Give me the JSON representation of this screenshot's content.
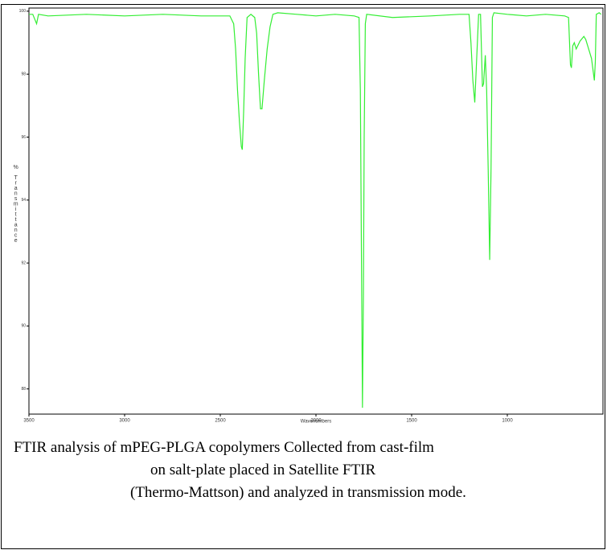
{
  "chart_data": {
    "type": "line",
    "x_label": "Wavenumbers",
    "y_label": "% Transmittance",
    "x": [
      3500,
      3480,
      3460,
      3450,
      3400,
      3200,
      3000,
      2800,
      2600,
      2450,
      2430,
      2420,
      2410,
      2400,
      2390,
      2385,
      2378,
      2370,
      2360,
      2340,
      2320,
      2310,
      2300,
      2290,
      2282,
      2270,
      2255,
      2240,
      2225,
      2200,
      2100,
      2000,
      1900,
      1800,
      1775,
      1768,
      1762,
      1757,
      1752,
      1748,
      1742,
      1735,
      1600,
      1400,
      1250,
      1200,
      1190,
      1180,
      1170,
      1160,
      1150,
      1140,
      1130,
      1124,
      1115,
      1108,
      1100,
      1092,
      1085,
      1078,
      1070,
      1000,
      900,
      800,
      700,
      680,
      670,
      665,
      658,
      650,
      640,
      620,
      600,
      590,
      580,
      560,
      545,
      540,
      535,
      520,
      510
    ],
    "series": [
      {
        "color": "#33ee33",
        "values": [
          99.9,
          99.9,
          99.6,
          99.9,
          99.85,
          99.9,
          99.85,
          99.9,
          99.85,
          99.85,
          99.6,
          98.8,
          97.5,
          96.5,
          95.7,
          95.6,
          96.8,
          98.5,
          99.8,
          99.9,
          99.8,
          99.3,
          98.0,
          96.9,
          96.9,
          97.8,
          98.8,
          99.5,
          99.9,
          99.95,
          99.9,
          99.85,
          99.9,
          99.85,
          99.8,
          97.5,
          92,
          87.4,
          91,
          96,
          99.6,
          99.9,
          99.8,
          99.85,
          99.9,
          99.9,
          99.0,
          97.8,
          97.1,
          98.5,
          99.9,
          99.9,
          97.6,
          97.7,
          98.6,
          97.5,
          95,
          92.1,
          95,
          99.8,
          99.95,
          99.9,
          99.85,
          99.9,
          99.85,
          99.8,
          98.3,
          98.2,
          98.9,
          99.0,
          98.8,
          99.05,
          99.2,
          99.1,
          98.9,
          98.5,
          97.8,
          98.4,
          99.9,
          99.95,
          99.9
        ]
      }
    ],
    "xlim": [
      3500,
      500
    ],
    "xticks": [
      3500,
      3000,
      2500,
      2000,
      1500,
      1000
    ],
    "ylim": [
      87.2,
      100.1
    ],
    "yticks": [
      88,
      90,
      92,
      94,
      96,
      98,
      100
    ]
  },
  "caption": [
    "FTIR analysis of mPEG-PLGA copolymers Collected from cast-film",
    "on salt-plate placed in Satellite FTIR",
    "(Thermo-Mattson) and analyzed in transmission mode."
  ]
}
